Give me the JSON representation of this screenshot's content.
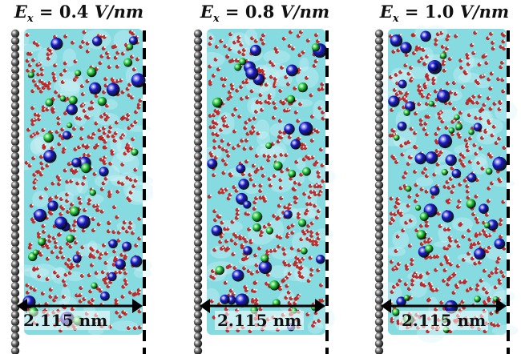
{
  "panels": [
    {
      "field_symbol": "E",
      "field_subscript": "x",
      "field_value": "0.4",
      "field_unit": "V/nm",
      "width_label": "2.115 nm"
    },
    {
      "field_symbol": "E",
      "field_subscript": "x",
      "field_value": "0.8",
      "field_unit": "V/nm",
      "width_label": "2.115 nm"
    },
    {
      "field_symbol": "E",
      "field_subscript": "x",
      "field_value": "1.0",
      "field_unit": "V/nm",
      "width_label": "2.115 nm"
    }
  ],
  "colors": {
    "water_surface": "#5ccfd6",
    "electrode_atom": "#6b6b6b",
    "ion_blue": "#1a1acc",
    "ion_green": "#22cc33",
    "water_oxygen": "#cc2a2a",
    "arrow": "#000000"
  }
}
